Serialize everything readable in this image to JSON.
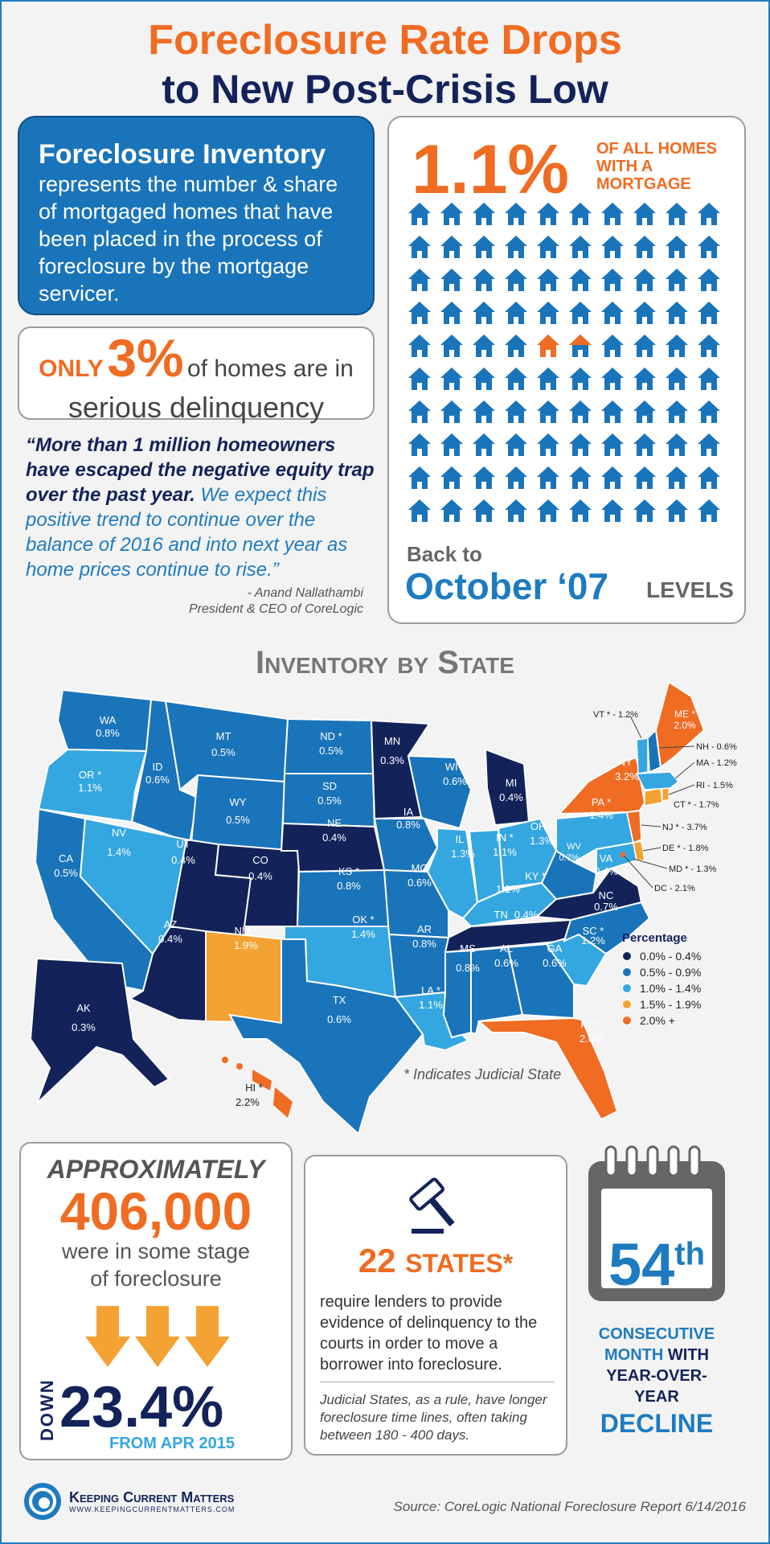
{
  "title": {
    "line1": "Foreclosure Rate Drops",
    "line2": "to New Post-Crisis Low"
  },
  "inventory": {
    "heading": "Foreclosure Inventory",
    "text": "represents the number & share of mortgaged homes that have been placed in the process of foreclosure by the mortgage servicer."
  },
  "delinquency": {
    "only": "ONLY",
    "pct": "3%",
    "rest": "of homes are in",
    "line2": "serious delinquency"
  },
  "quote": {
    "bold": "“More than 1 million homeowners have escaped the negative equity trap over the past year.",
    "rest": "We expect this positive trend to continue over the balance of 2016 and into next year as home prices continue to rise.”",
    "author": "- Anand Nallathambi",
    "role": "President & CEO of CoreLogic"
  },
  "homes": {
    "pct": "1.1%",
    "label": "OF ALL HOMES WITH A MORTGAGE",
    "houses_total": 100,
    "houses_highlighted": 1.1,
    "back": "Back to",
    "month": "October ‘07",
    "levels": "LEVELS"
  },
  "map": {
    "title": "Inventory by State",
    "judicial_note": "* Indicates Judicial State",
    "legend_title": "Percentage",
    "legend": [
      {
        "label": "0.0% - 0.4%",
        "color": "#13235a"
      },
      {
        "label": "0.5% - 0.9%",
        "color": "#1a74ba"
      },
      {
        "label": "1.0% - 1.4%",
        "color": "#35a7e0"
      },
      {
        "label": "1.5% - 1.9%",
        "color": "#f4a233"
      },
      {
        "label": "2.0% +",
        "color": "#ef6c22"
      }
    ],
    "states": [
      {
        "n": "WA",
        "v": "0.8%"
      },
      {
        "n": "OR *",
        "v": "1.1%"
      },
      {
        "n": "CA",
        "v": "0.5%"
      },
      {
        "n": "ID",
        "v": "0.6%"
      },
      {
        "n": "NV",
        "v": "1.4%"
      },
      {
        "n": "MT",
        "v": "0.5%"
      },
      {
        "n": "WY",
        "v": "0.5%"
      },
      {
        "n": "UT",
        "v": "0.4%"
      },
      {
        "n": "AZ",
        "v": "0.4%"
      },
      {
        "n": "CO",
        "v": "0.4%"
      },
      {
        "n": "NM *",
        "v": "1.9%"
      },
      {
        "n": "ND *",
        "v": "0.5%"
      },
      {
        "n": "SD",
        "v": "0.5%"
      },
      {
        "n": "NE",
        "v": "0.4%"
      },
      {
        "n": "KS *",
        "v": "0.8%"
      },
      {
        "n": "OK *",
        "v": "1.4%"
      },
      {
        "n": "TX",
        "v": "0.6%"
      },
      {
        "n": "MN",
        "v": "0.3%"
      },
      {
        "n": "IA",
        "v": "0.8%"
      },
      {
        "n": "MO",
        "v": "0.6%"
      },
      {
        "n": "AR",
        "v": "0.8%"
      },
      {
        "n": "LA *",
        "v": "1.1%"
      },
      {
        "n": "WI *",
        "v": "0.6%"
      },
      {
        "n": "IL *",
        "v": "1.3%"
      },
      {
        "n": "MI",
        "v": "0.4%"
      },
      {
        "n": "IN *",
        "v": "1.1%"
      },
      {
        "n": "OH *",
        "v": "1.3%"
      },
      {
        "n": "KY *",
        "v": "1.1%"
      },
      {
        "n": "TN",
        "v": "0.4%"
      },
      {
        "n": "MS",
        "v": "0.8%"
      },
      {
        "n": "AL",
        "v": "0.6%"
      },
      {
        "n": "GA",
        "v": "0.6%"
      },
      {
        "n": "FL *",
        "v": "2.0%"
      },
      {
        "n": "SC *",
        "v": "1.2%"
      },
      {
        "n": "NC",
        "v": "0.7%"
      },
      {
        "n": "VA",
        "v": "0.4%"
      },
      {
        "n": "WV",
        "v": "0.7%"
      },
      {
        "n": "PA *",
        "v": "1.4%"
      },
      {
        "n": "NY *",
        "v": "3.2%"
      },
      {
        "n": "ME *",
        "v": "2.0%"
      },
      {
        "n": "AK",
        "v": "0.3%"
      },
      {
        "n": "HI *",
        "v": "2.2%"
      }
    ],
    "east_labels": [
      "VT * - 1.2%",
      "NH - 0.6%",
      "MA - 1.2%",
      "RI - 1.5%",
      "CT * - 1.7%",
      "NJ * - 3.7%",
      "DE * - 1.8%",
      "MD * - 1.3%",
      "DC - 2.1%"
    ]
  },
  "stats": {
    "approx": "APPROXIMATELY",
    "num": "406,000",
    "txt1": "were in some stage",
    "txt2": "of foreclosure",
    "down": "DOWN",
    "pct": "23.4%",
    "from": "FROM APR 2015",
    "states": "22",
    "states_word": "STATES",
    "star": "*",
    "req": "require lenders to provide evidence of delinquency to the courts in order to move a borrower into foreclosure.",
    "judicial": "Judicial States, as a rule, have longer foreclosure time lines, often taking between 180 - 400 days.",
    "ord": "54",
    "ord_sup": "th",
    "consec1": "CONSECUTIVE",
    "consec2": "MONTH",
    "consec3": "WITH",
    "consec4": "YEAR-OVER-",
    "consec5": "YEAR",
    "decline": "DECLINE"
  },
  "footer": {
    "brand": "Keeping Current Matters",
    "url": "WWW.KEEPINGCURRENTMATTERS.COM",
    "source": "Source: CoreLogic National Foreclosure Report 6/14/2016"
  }
}
